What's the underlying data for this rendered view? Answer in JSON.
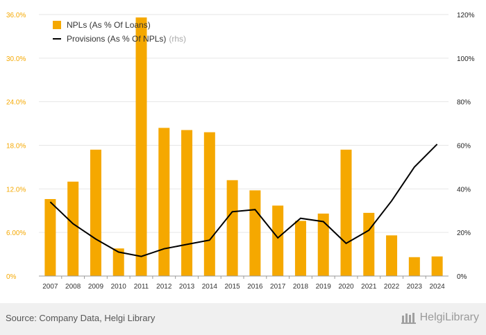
{
  "chart_data": {
    "type": "bar",
    "categories": [
      "2007",
      "2008",
      "2009",
      "2010",
      "2011",
      "2012",
      "2013",
      "2014",
      "2015",
      "2016",
      "2017",
      "2018",
      "2019",
      "2020",
      "2021",
      "2022",
      "2023",
      "2024"
    ],
    "series": [
      {
        "name": "NPLs (As % Of Loans)",
        "type": "bar",
        "axis": "left",
        "color": "#f5a800",
        "values": [
          10.6,
          13.0,
          17.4,
          3.8,
          35.6,
          20.4,
          20.1,
          19.8,
          13.2,
          11.8,
          9.7,
          7.6,
          8.6,
          17.4,
          8.7,
          5.6,
          2.6,
          2.7
        ]
      },
      {
        "name": "Provisions (As % Of NPLs)",
        "type": "line",
        "axis": "right",
        "color": "#000000",
        "values": [
          34,
          24,
          17,
          11,
          9,
          12.5,
          14.5,
          16.5,
          29.5,
          30.5,
          17.5,
          26.5,
          25,
          15,
          21,
          34.5,
          50,
          60.5
        ]
      }
    ],
    "y_left": {
      "ylim": [
        0,
        36
      ],
      "ticks": [
        "0%",
        "6.00%",
        "12.0%",
        "18.0%",
        "24.0%",
        "30.0%",
        "36.0%"
      ],
      "color": "#f5a800"
    },
    "y_right": {
      "ylim": [
        0,
        120
      ],
      "ticks": [
        "0%",
        "20%",
        "40%",
        "60%",
        "80%",
        "100%",
        "120%"
      ]
    },
    "grid": true,
    "legend_position": "top-left"
  },
  "legend": {
    "npl_label": "NPLs (As % Of Loans)",
    "provisions_label": "Provisions (As % Of NPLs)",
    "provisions_note": "(rhs)"
  },
  "footer": {
    "source": "Source: Company Data, Helgi Library",
    "brand": "HelgiLibrary"
  }
}
